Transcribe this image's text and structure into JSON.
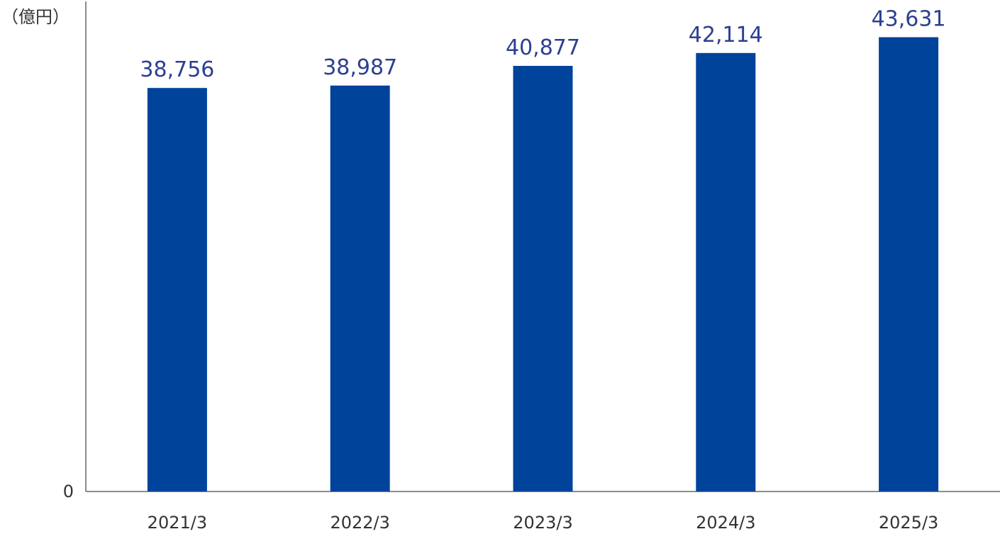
{
  "chart_data": {
    "type": "bar",
    "unit": "（億円）",
    "categories": [
      "2021/3",
      "2022/3",
      "2023/3",
      "2024/3",
      "2025/3"
    ],
    "values": [
      38756,
      38987,
      40877,
      42114,
      43631
    ],
    "value_labels": [
      "38,756",
      "38,987",
      "40,877",
      "42,114",
      "43,631"
    ],
    "y_tick_labels": [
      "0"
    ],
    "ylim": [
      0,
      47000
    ],
    "grid": false,
    "legend": "none",
    "bar_color": "#00439a",
    "value_label_color": "#2d3f91"
  }
}
